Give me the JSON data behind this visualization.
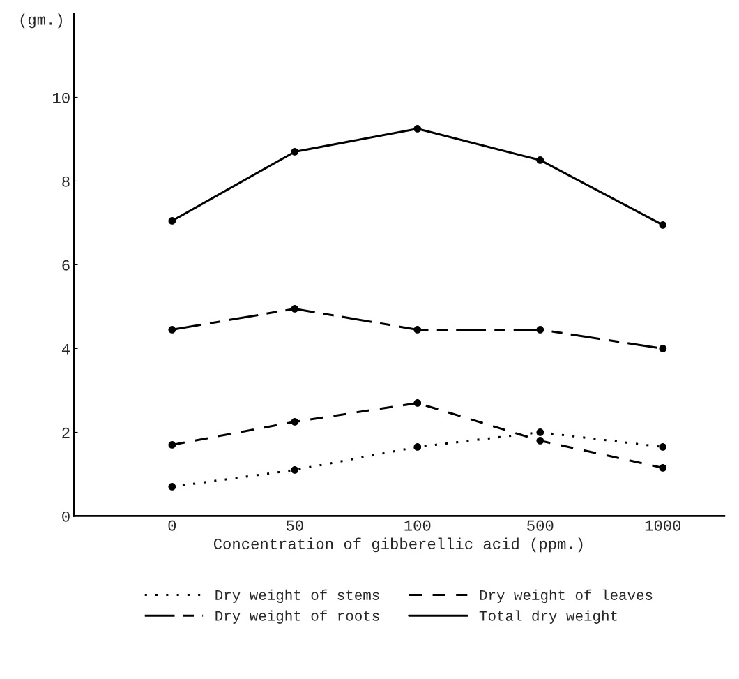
{
  "chart_data": {
    "type": "line",
    "ylabel": "(gm.)",
    "xlabel": "Concentration of gibberellic acid (ppm.)",
    "categories": [
      "0",
      "50",
      "100",
      "500",
      "1000"
    ],
    "series": [
      {
        "name": "Dry weight of stems",
        "color": "#000000",
        "line_style": "dotted",
        "values": [
          0.7,
          1.1,
          1.65,
          2.0,
          1.65
        ]
      },
      {
        "name": "Dry weight of roots",
        "color": "#000000",
        "line_style": "dashdot",
        "values": [
          4.45,
          4.95,
          4.45,
          4.45,
          4.0
        ]
      },
      {
        "name": "Dry weight of leaves",
        "color": "#000000",
        "line_style": "dashed",
        "values": [
          1.7,
          2.25,
          2.7,
          1.8,
          1.15
        ]
      },
      {
        "name": "Total dry weight",
        "color": "#000000",
        "line_style": "solid",
        "values": [
          7.05,
          8.7,
          9.25,
          8.5,
          6.95
        ]
      }
    ],
    "ylim": [
      0,
      12
    ],
    "yticks": [
      0,
      2,
      4,
      6,
      8,
      10
    ],
    "marker": "circle",
    "grid": false,
    "legend": "bottom"
  }
}
